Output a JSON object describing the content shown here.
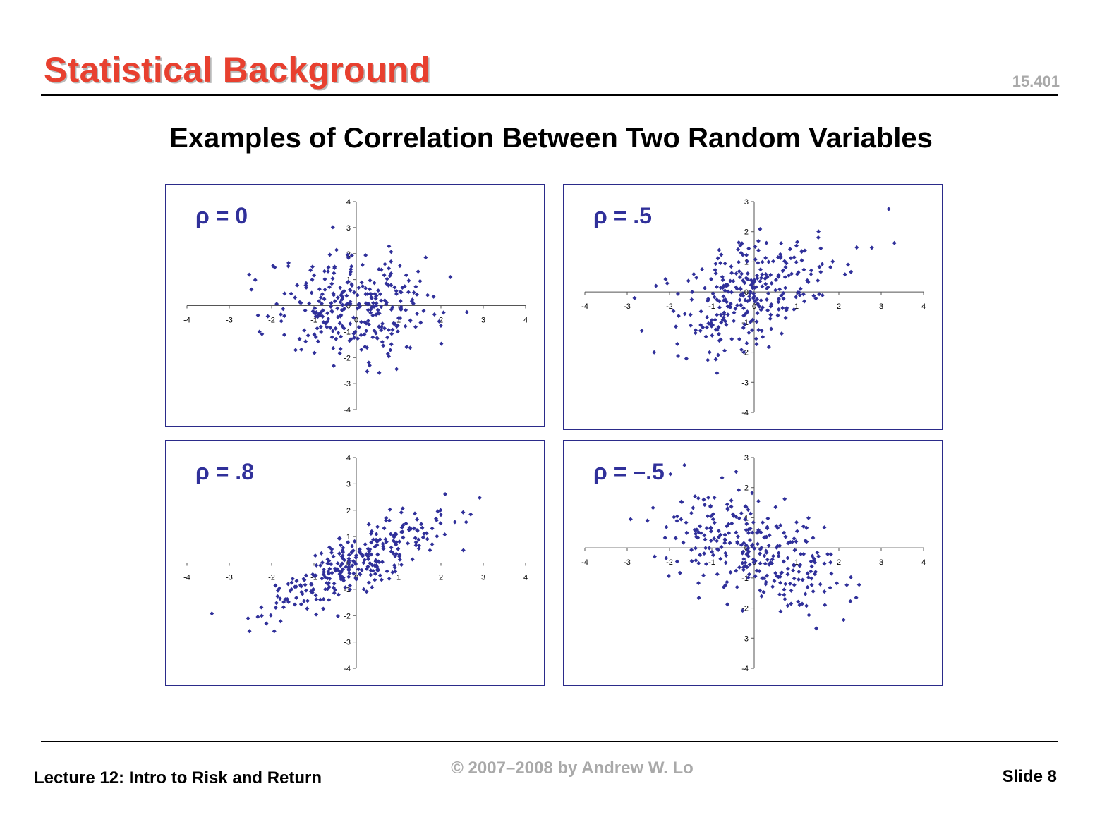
{
  "header": {
    "title": "Statistical Background",
    "course_number": "15.401"
  },
  "subtitle": "Examples of Correlation Between Two Random Variables",
  "footer": {
    "lecture": "Lecture 12: Intro to Risk and Return",
    "copyright": "© 2007–2008 by Andrew W. Lo",
    "slide": "Slide 8"
  },
  "colors": {
    "title": "#e8402f",
    "marker": "#30309a",
    "panel_border": "#2b2b8a"
  },
  "chart_data": [
    {
      "type": "scatter",
      "title": "ρ = 0",
      "rho": 0,
      "xlim": [
        -4,
        4
      ],
      "ylim": [
        -4,
        4
      ],
      "x_ticks": [
        -4,
        -3,
        -2,
        -1,
        0,
        1,
        2,
        3,
        4
      ],
      "y_ticks": [
        -4,
        -3,
        -2,
        -1,
        0,
        1,
        2,
        3,
        4
      ],
      "n_points": 300,
      "marker": "diamond"
    },
    {
      "type": "scatter",
      "title": "ρ = .5",
      "rho": 0.5,
      "xlim": [
        -4,
        4
      ],
      "ylim": [
        -4,
        3
      ],
      "x_ticks": [
        -4,
        -3,
        -2,
        -1,
        0,
        1,
        2,
        3,
        4
      ],
      "y_ticks": [
        -4,
        -3,
        -2,
        -1,
        0,
        1,
        2,
        3
      ],
      "n_points": 300,
      "marker": "diamond"
    },
    {
      "type": "scatter",
      "title": "ρ = .8",
      "rho": 0.8,
      "xlim": [
        -4,
        4
      ],
      "ylim": [
        -4,
        4
      ],
      "x_ticks": [
        -4,
        -3,
        -2,
        -1,
        0,
        1,
        2,
        3,
        4
      ],
      "y_ticks": [
        -4,
        -3,
        -2,
        -1,
        0,
        1,
        2,
        3,
        4
      ],
      "n_points": 300,
      "marker": "diamond"
    },
    {
      "type": "scatter",
      "title": "ρ = –.5",
      "rho": -0.5,
      "xlim": [
        -4,
        4
      ],
      "ylim": [
        -4,
        3
      ],
      "x_ticks": [
        -4,
        -3,
        -2,
        -1,
        0,
        1,
        2,
        3,
        4
      ],
      "y_ticks": [
        -4,
        -3,
        -2,
        -1,
        0,
        1,
        2,
        3
      ],
      "n_points": 300,
      "marker": "diamond"
    }
  ]
}
